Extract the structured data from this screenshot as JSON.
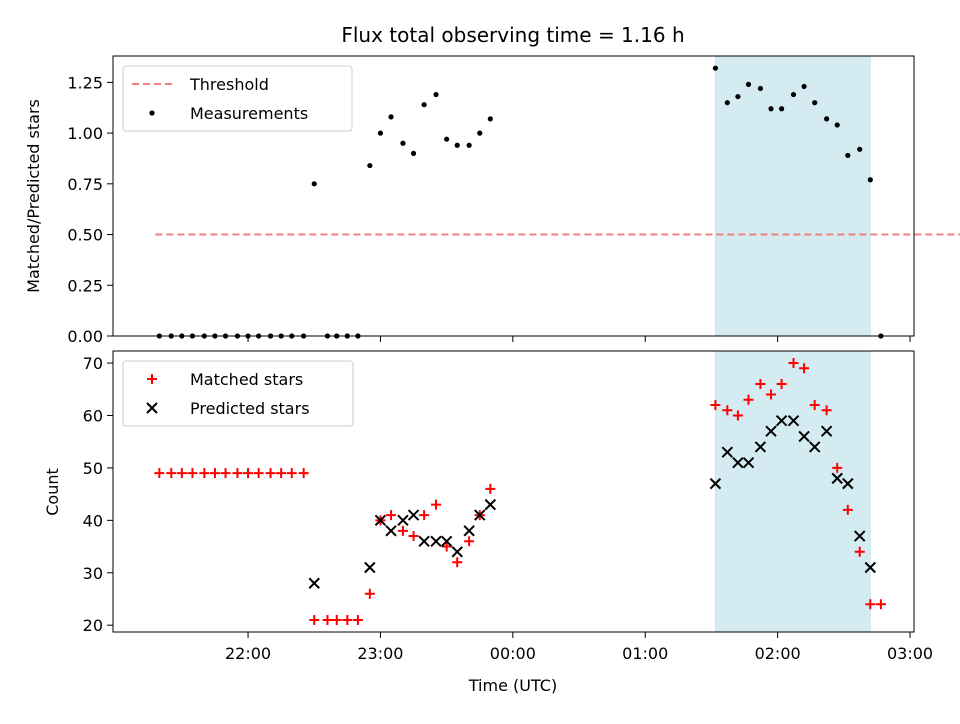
{
  "chart_data": [
    {
      "type": "scatter",
      "title": "Flux total observing time = 1.16 h",
      "ylabel": "Matched/Predicted stars",
      "ylim": [
        0,
        1.38
      ],
      "y_ticks": [
        "0.00",
        "0.25",
        "0.50",
        "0.75",
        "1.00",
        "1.25"
      ],
      "legend_position": "top-left",
      "highlight_band_x_hours": [
        25.53,
        26.7
      ],
      "highlight_color": "#d3ebf1",
      "series": [
        {
          "name": "Threshold",
          "style": "dashed-line",
          "color": "#f08080",
          "x_range_hours": [
            21.3,
            28.8
          ],
          "value": 0.5
        },
        {
          "name": "Measurements",
          "style": "dot",
          "color": "#000000",
          "points": [
            [
              21.33,
              0
            ],
            [
              21.42,
              0
            ],
            [
              21.5,
              0
            ],
            [
              21.58,
              0
            ],
            [
              21.67,
              0
            ],
            [
              21.75,
              0
            ],
            [
              21.83,
              0
            ],
            [
              21.92,
              0
            ],
            [
              22.0,
              0
            ],
            [
              22.08,
              0
            ],
            [
              22.17,
              0
            ],
            [
              22.25,
              0
            ],
            [
              22.33,
              0
            ],
            [
              22.42,
              0
            ],
            [
              22.5,
              0.75
            ],
            [
              22.6,
              0
            ],
            [
              22.67,
              0
            ],
            [
              22.75,
              0
            ],
            [
              22.83,
              0
            ],
            [
              22.92,
              0.84
            ],
            [
              23.0,
              1.0
            ],
            [
              23.08,
              1.08
            ],
            [
              23.17,
              0.95
            ],
            [
              23.25,
              0.9
            ],
            [
              23.33,
              1.14
            ],
            [
              23.42,
              1.19
            ],
            [
              23.5,
              0.97
            ],
            [
              23.58,
              0.94
            ],
            [
              23.67,
              0.94
            ],
            [
              23.75,
              1.0
            ],
            [
              23.83,
              1.07
            ],
            [
              25.53,
              1.32
            ],
            [
              25.62,
              1.15
            ],
            [
              25.7,
              1.18
            ],
            [
              25.78,
              1.24
            ],
            [
              25.87,
              1.22
            ],
            [
              25.95,
              1.12
            ],
            [
              26.03,
              1.12
            ],
            [
              26.12,
              1.19
            ],
            [
              26.2,
              1.23
            ],
            [
              26.28,
              1.15
            ],
            [
              26.37,
              1.07
            ],
            [
              26.45,
              1.04
            ],
            [
              26.53,
              0.89
            ],
            [
              26.62,
              0.92
            ],
            [
              26.7,
              0.77
            ],
            [
              26.78,
              0
            ]
          ]
        }
      ]
    },
    {
      "type": "scatter",
      "xlabel": "Time (UTC)",
      "ylabel": "Count",
      "ylim": [
        18.7,
        72.3
      ],
      "y_ticks": [
        "20",
        "30",
        "40",
        "50",
        "60",
        "70"
      ],
      "x_ticks": [
        {
          "hour": 22,
          "label": "22:00"
        },
        {
          "hour": 23,
          "label": "23:00"
        },
        {
          "hour": 24,
          "label": "00:00"
        },
        {
          "hour": 25,
          "label": "01:00"
        },
        {
          "hour": 26,
          "label": "02:00"
        },
        {
          "hour": 27,
          "label": "03:00"
        }
      ],
      "xlim_hours": [
        20.98,
        27.03
      ],
      "legend_position": "top-left",
      "highlight_band_x_hours": [
        25.53,
        26.7
      ],
      "highlight_color": "#d3ebf1",
      "series": [
        {
          "name": "Matched stars",
          "style": "plus",
          "color": "#ff0000",
          "points": [
            [
              21.33,
              49
            ],
            [
              21.42,
              49
            ],
            [
              21.5,
              49
            ],
            [
              21.58,
              49
            ],
            [
              21.67,
              49
            ],
            [
              21.75,
              49
            ],
            [
              21.83,
              49
            ],
            [
              21.92,
              49
            ],
            [
              22.0,
              49
            ],
            [
              22.08,
              49
            ],
            [
              22.17,
              49
            ],
            [
              22.25,
              49
            ],
            [
              22.33,
              49
            ],
            [
              22.42,
              49
            ],
            [
              22.5,
              21
            ],
            [
              22.6,
              21
            ],
            [
              22.67,
              21
            ],
            [
              22.75,
              21
            ],
            [
              22.83,
              21
            ],
            [
              22.92,
              26
            ],
            [
              23.0,
              40
            ],
            [
              23.08,
              41
            ],
            [
              23.17,
              38
            ],
            [
              23.25,
              37
            ],
            [
              23.33,
              41
            ],
            [
              23.42,
              43
            ],
            [
              23.5,
              35
            ],
            [
              23.58,
              32
            ],
            [
              23.67,
              36
            ],
            [
              23.75,
              41
            ],
            [
              23.83,
              46
            ],
            [
              25.53,
              62
            ],
            [
              25.62,
              61
            ],
            [
              25.7,
              60
            ],
            [
              25.78,
              63
            ],
            [
              25.87,
              66
            ],
            [
              25.95,
              64
            ],
            [
              26.03,
              66
            ],
            [
              26.12,
              70
            ],
            [
              26.2,
              69
            ],
            [
              26.28,
              62
            ],
            [
              26.37,
              61
            ],
            [
              26.45,
              50
            ],
            [
              26.53,
              42
            ],
            [
              26.62,
              34
            ],
            [
              26.7,
              24
            ],
            [
              26.78,
              24
            ]
          ]
        },
        {
          "name": "Predicted stars",
          "style": "x",
          "color": "#000000",
          "points": [
            [
              22.5,
              28
            ],
            [
              22.92,
              31
            ],
            [
              23.0,
              40
            ],
            [
              23.08,
              38
            ],
            [
              23.17,
              40
            ],
            [
              23.25,
              41
            ],
            [
              23.33,
              36
            ],
            [
              23.42,
              36
            ],
            [
              23.5,
              36
            ],
            [
              23.58,
              34
            ],
            [
              23.67,
              38
            ],
            [
              23.75,
              41
            ],
            [
              23.83,
              43
            ],
            [
              25.53,
              47
            ],
            [
              25.62,
              53
            ],
            [
              25.7,
              51
            ],
            [
              25.78,
              51
            ],
            [
              25.87,
              54
            ],
            [
              25.95,
              57
            ],
            [
              26.03,
              59
            ],
            [
              26.12,
              59
            ],
            [
              26.2,
              56
            ],
            [
              26.28,
              54
            ],
            [
              26.37,
              57
            ],
            [
              26.45,
              48
            ],
            [
              26.53,
              47
            ],
            [
              26.62,
              37
            ],
            [
              26.7,
              31
            ]
          ]
        }
      ]
    }
  ]
}
